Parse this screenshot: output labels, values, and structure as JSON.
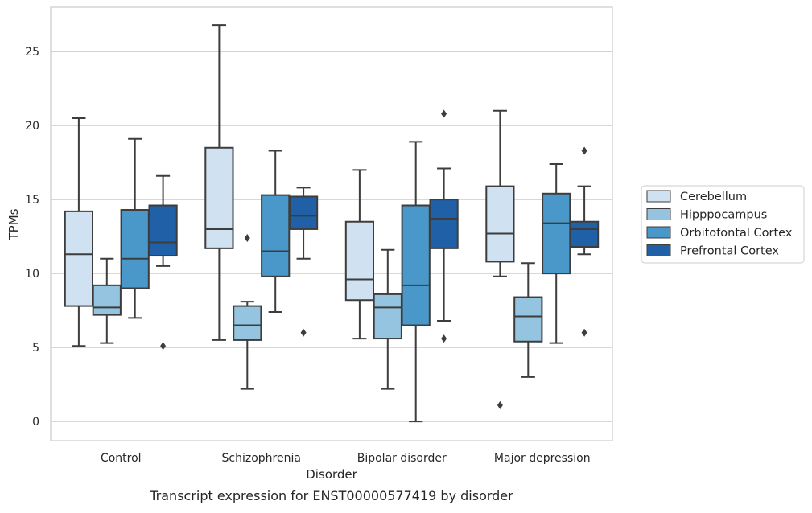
{
  "chart_data": {
    "type": "box",
    "title": "",
    "caption": "Transcript expression for ENST00000577419 by disorder",
    "xlabel": "Disorder",
    "ylabel": "TPMs",
    "ylim": [
      -1.3,
      28
    ],
    "yticks": [
      0,
      5,
      10,
      15,
      20,
      25
    ],
    "grid": "horizontal",
    "legend_position": "right",
    "categories": [
      "Control",
      "Schizophrenia",
      "Bipolar disorder",
      "Major depression"
    ],
    "series": [
      {
        "name": "Cerebellum",
        "color": "#d0e1f2",
        "boxes": [
          {
            "whislo": 5.1,
            "q1": 7.8,
            "med": 11.3,
            "q3": 14.2,
            "whishi": 20.5,
            "fliers": []
          },
          {
            "whislo": 5.5,
            "q1": 11.7,
            "med": 13.0,
            "q3": 18.5,
            "whishi": 26.8,
            "fliers": []
          },
          {
            "whislo": 5.6,
            "q1": 8.2,
            "med": 9.6,
            "q3": 13.5,
            "whishi": 17.0,
            "fliers": []
          },
          {
            "whislo": 9.8,
            "q1": 10.8,
            "med": 12.7,
            "q3": 15.9,
            "whishi": 21.0,
            "fliers": [
              1.1
            ]
          }
        ]
      },
      {
        "name": "Hipppocampus",
        "color": "#94c4df",
        "boxes": [
          {
            "whislo": 5.3,
            "q1": 7.2,
            "med": 7.7,
            "q3": 9.2,
            "whishi": 11.0,
            "fliers": []
          },
          {
            "whislo": 2.2,
            "q1": 5.5,
            "med": 6.5,
            "q3": 7.8,
            "whishi": 8.1,
            "fliers": [
              12.4
            ]
          },
          {
            "whislo": 2.2,
            "q1": 5.6,
            "med": 7.7,
            "q3": 8.6,
            "whishi": 11.6,
            "fliers": []
          },
          {
            "whislo": 3.0,
            "q1": 5.4,
            "med": 7.1,
            "q3": 8.4,
            "whishi": 10.7,
            "fliers": []
          }
        ]
      },
      {
        "name": "Orbitofontal Cortex",
        "color": "#4a98c9",
        "boxes": [
          {
            "whislo": 7.0,
            "q1": 9.0,
            "med": 11.0,
            "q3": 14.3,
            "whishi": 19.1,
            "fliers": []
          },
          {
            "whislo": 7.4,
            "q1": 9.8,
            "med": 11.5,
            "q3": 15.3,
            "whishi": 18.3,
            "fliers": []
          },
          {
            "whislo": 0.0,
            "q1": 6.5,
            "med": 9.2,
            "q3": 14.6,
            "whishi": 18.9,
            "fliers": []
          },
          {
            "whislo": 5.3,
            "q1": 10.0,
            "med": 13.4,
            "q3": 15.4,
            "whishi": 17.4,
            "fliers": []
          }
        ]
      },
      {
        "name": "Prefrontal Cortex",
        "color": "#2060a7",
        "boxes": [
          {
            "whislo": 10.5,
            "q1": 11.2,
            "med": 12.1,
            "q3": 14.6,
            "whishi": 16.6,
            "fliers": [
              5.1
            ]
          },
          {
            "whislo": 11.0,
            "q1": 13.0,
            "med": 13.9,
            "q3": 15.2,
            "whishi": 15.8,
            "fliers": [
              6.0
            ]
          },
          {
            "whislo": 6.8,
            "q1": 11.7,
            "med": 13.7,
            "q3": 15.0,
            "whishi": 17.1,
            "fliers": [
              5.6,
              20.8
            ]
          },
          {
            "whislo": 11.3,
            "q1": 11.8,
            "med": 13.0,
            "q3": 13.5,
            "whishi": 15.9,
            "fliers": [
              6.0,
              18.3
            ]
          }
        ]
      }
    ]
  }
}
